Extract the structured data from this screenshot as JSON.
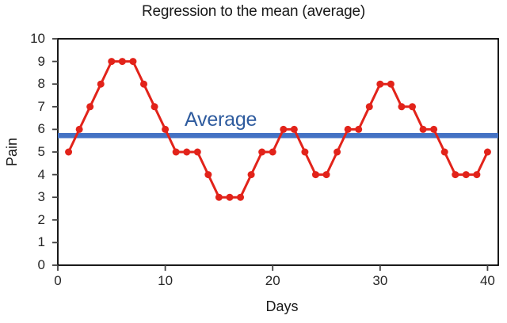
{
  "chart_data": {
    "type": "line",
    "title": "Regression to the mean (average)",
    "xlabel": "Days",
    "ylabel": "Pain",
    "series": [
      {
        "name": "Pain",
        "x": [
          1,
          2,
          3,
          4,
          5,
          6,
          7,
          8,
          9,
          10,
          11,
          12,
          13,
          14,
          15,
          16,
          17,
          18,
          19,
          20,
          21,
          22,
          23,
          24,
          25,
          26,
          27,
          28,
          29,
          30,
          31,
          32,
          33,
          34,
          35,
          36,
          37,
          38,
          39,
          40
        ],
        "values": [
          5,
          6,
          7,
          8,
          9,
          9,
          9,
          8,
          7,
          6,
          5,
          5,
          5,
          4,
          3,
          3,
          3,
          4,
          5,
          5,
          6,
          6,
          5,
          4,
          4,
          5,
          6,
          6,
          7,
          8,
          8,
          7,
          7,
          6,
          6,
          5,
          4,
          4,
          4,
          5
        ]
      }
    ],
    "average_line": {
      "label": "Average",
      "value": 5.725
    },
    "xlim": [
      0,
      41
    ],
    "ylim": [
      0,
      10
    ],
    "x_ticks": [
      0,
      10,
      20,
      30,
      40
    ],
    "y_ticks": [
      0,
      1,
      2,
      3,
      4,
      5,
      6,
      7,
      8,
      9,
      10
    ],
    "grid": false,
    "legend": "none",
    "colors": {
      "series": "#e2231a",
      "average_line": "#4472c4",
      "average_label": "#2e5b9e",
      "axis": "#000000",
      "tick": "#404040",
      "text": "#262626"
    }
  }
}
